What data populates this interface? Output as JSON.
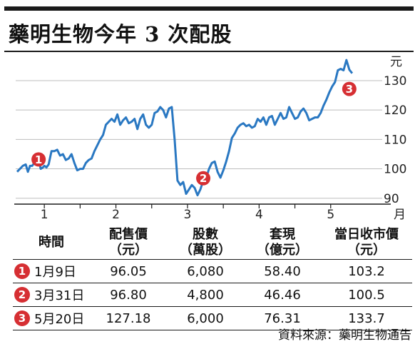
{
  "title": "藥明生物今年 3 次配股",
  "chart_data": {
    "type": "line",
    "y_unit": "元",
    "x_unit": "月",
    "ylim": [
      88,
      138
    ],
    "xlim": [
      0.6,
      5.6
    ],
    "yticks": [
      90,
      100,
      110,
      120,
      130
    ],
    "xticks": [
      1,
      2,
      3,
      4,
      5
    ],
    "color": "#2a78c2",
    "grid": true,
    "series": [
      {
        "x": [
          0.62,
          0.66,
          0.7,
          0.74,
          0.77,
          0.8,
          0.83,
          0.86,
          0.89,
          0.92,
          0.95,
          0.98,
          1.0,
          1.03,
          1.06,
          1.1,
          1.14,
          1.18,
          1.22,
          1.26,
          1.3,
          1.34,
          1.38,
          1.42,
          1.46,
          1.5,
          1.54,
          1.58,
          1.62,
          1.66,
          1.7,
          1.74,
          1.78,
          1.82,
          1.86,
          1.9,
          1.94,
          1.98,
          2.02,
          2.06,
          2.1,
          2.14,
          2.18,
          2.22,
          2.26,
          2.3,
          2.34,
          2.38,
          2.42,
          2.46,
          2.5,
          2.54,
          2.58,
          2.62,
          2.66,
          2.7,
          2.74,
          2.78,
          2.82,
          2.86,
          2.9,
          2.94,
          2.98,
          3.02,
          3.06,
          3.1,
          3.14,
          3.18,
          3.22,
          3.26,
          3.3,
          3.34,
          3.38,
          3.42,
          3.46,
          3.5,
          3.54,
          3.58,
          3.62,
          3.66,
          3.7,
          3.74,
          3.78,
          3.82,
          3.86,
          3.9,
          3.94,
          3.98,
          4.02,
          4.06,
          4.1,
          4.14,
          4.18,
          4.22,
          4.26,
          4.3,
          4.34,
          4.38,
          4.42,
          4.46,
          4.5,
          4.54,
          4.58,
          4.62,
          4.66,
          4.7,
          4.74,
          4.78,
          4.82,
          4.86,
          4.9,
          4.94,
          4.98,
          5.02,
          5.06,
          5.1,
          5.14,
          5.18,
          5.22,
          5.26,
          5.3
        ],
        "values": [
          99,
          100,
          101,
          101.5,
          99,
          101,
          101,
          102,
          101.5,
          103.2,
          100,
          100.5,
          101,
          100.5,
          101.5,
          106,
          106,
          106.5,
          104.5,
          105,
          103,
          103.5,
          105,
          102,
          99.5,
          100,
          100,
          102,
          103,
          103.5,
          106,
          108,
          110,
          111.5,
          115,
          116,
          117,
          116,
          118.5,
          115,
          116.5,
          117.5,
          115.5,
          116,
          117,
          113.5,
          117,
          118.5,
          115,
          114,
          115,
          119,
          119.5,
          121,
          120,
          117.5,
          120.5,
          121,
          110,
          96,
          94.5,
          95.5,
          91.5,
          93,
          94.5,
          93.5,
          91,
          93,
          96,
          96.8,
          100,
          102,
          102.5,
          99,
          97,
          99.5,
          102.5,
          106,
          110.5,
          112,
          114,
          115,
          115.5,
          114.5,
          115,
          114,
          114.5,
          117,
          116,
          117.5,
          115,
          117.5,
          118,
          115,
          117,
          119,
          117,
          117.5,
          121,
          119,
          117,
          117.5,
          119.5,
          120.5,
          119,
          116.5,
          117,
          117.5,
          117.5,
          119,
          121.5,
          123.5,
          126,
          128,
          129.5,
          133.5,
          134,
          133.5,
          137,
          133.7,
          132.5
        ]
      }
    ],
    "markers": [
      {
        "label": "1",
        "x": 0.92,
        "y": 103.2
      },
      {
        "label": "2",
        "x": 3.22,
        "y": 96.8
      },
      {
        "label": "3",
        "x": 5.26,
        "y": 127.18
      }
    ]
  },
  "table": {
    "headers": [
      [
        "時間"
      ],
      [
        "配售價",
        "（元）"
      ],
      [
        "股數",
        "（萬股）"
      ],
      [
        "套現",
        "（億元）"
      ],
      [
        "當日收市價",
        "（元）"
      ]
    ],
    "rows": [
      {
        "badge": "1",
        "date": "1月9日",
        "price": "96.05",
        "shares": "6,080",
        "proceeds": "58.40",
        "close": "103.2"
      },
      {
        "badge": "2",
        "date": "3月31日",
        "price": "96.80",
        "shares": "4,800",
        "proceeds": "46.46",
        "close": "100.5"
      },
      {
        "badge": "3",
        "date": "5月20日",
        "price": "127.18",
        "shares": "6,000",
        "proceeds": "76.31",
        "close": "133.7"
      }
    ]
  },
  "source": "資料來源：藥明生物通告"
}
